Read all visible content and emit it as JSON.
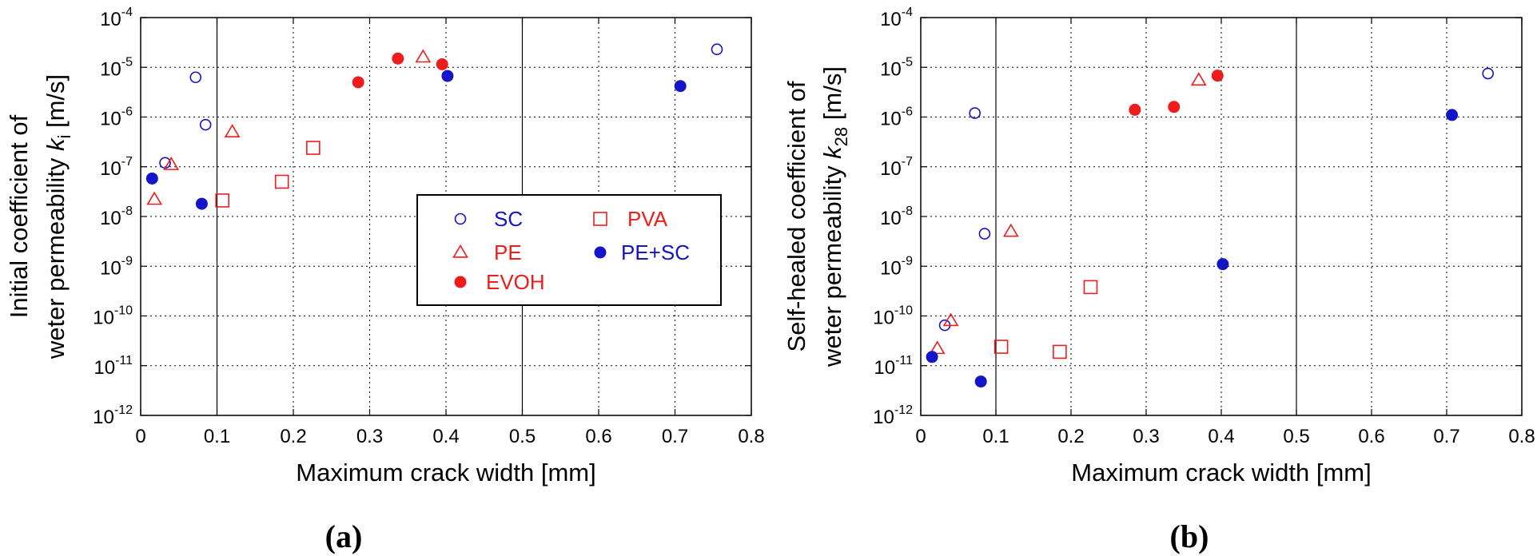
{
  "colors": {
    "blue": "#1414c8",
    "red": "#ee1c1c",
    "black": "#000000"
  },
  "legend": {
    "entries": [
      {
        "key": "SC",
        "label": "SC",
        "marker": "circle-open",
        "color": "blue"
      },
      {
        "key": "PE",
        "label": "PE",
        "marker": "triangle-open",
        "color": "red"
      },
      {
        "key": "EVOH",
        "label": "EVOH",
        "marker": "circle-filled",
        "color": "red"
      },
      {
        "key": "PVA",
        "label": "PVA",
        "marker": "square-open",
        "color": "red"
      },
      {
        "key": "PE+SC",
        "label": "PE+SC",
        "marker": "circle-filled",
        "color": "blue"
      }
    ]
  },
  "chart_data": [
    {
      "type": "scatter",
      "panel_label": "(a)",
      "xlabel": "Maximum crack width [mm]",
      "ylabel_line1": "Initial coefficient of",
      "ylabel_line2_prefix": "weter permeability ",
      "ylabel_symbol": "k",
      "ylabel_subscript": "i",
      "ylabel_unit": " [m/s]",
      "xlim": [
        0,
        0.8
      ],
      "x_ticks": [
        "0",
        "0.1",
        "0.2",
        "0.3",
        "0.4",
        "0.5",
        "0.6",
        "0.7",
        "0.8"
      ],
      "y_scale": "log",
      "ylim_exp": [
        -12,
        -4
      ],
      "y_tick_base": "10",
      "y_tick_exps": [
        "-12",
        "-11",
        "-10",
        "-9",
        "-8",
        "-7",
        "-6",
        "-5",
        "-4"
      ],
      "grid": true,
      "legend_position": "inside-right",
      "series": [
        {
          "key": "SC",
          "points": [
            [
              0.072,
              6.3e-06
            ],
            [
              0.085,
              7e-07
            ],
            [
              0.032,
              1.2e-07
            ],
            [
              0.755,
              2.3e-05
            ]
          ]
        },
        {
          "key": "PE",
          "points": [
            [
              0.018,
              2.2e-08
            ],
            [
              0.04,
              1.1e-07
            ],
            [
              0.12,
              5e-07
            ],
            [
              0.37,
              1.6e-05
            ]
          ]
        },
        {
          "key": "EVOH",
          "points": [
            [
              0.285,
              5e-06
            ],
            [
              0.337,
              1.5e-05
            ],
            [
              0.395,
              1.15e-05
            ]
          ]
        },
        {
          "key": "PVA",
          "points": [
            [
              0.107,
              2.1e-08
            ],
            [
              0.185,
              5e-08
            ],
            [
              0.226,
              2.4e-07
            ]
          ]
        },
        {
          "key": "PE+SC",
          "points": [
            [
              0.015,
              5.8e-08
            ],
            [
              0.08,
              1.8e-08
            ],
            [
              0.402,
              6.7e-06
            ],
            [
              0.707,
              4.2e-06
            ]
          ]
        }
      ]
    },
    {
      "type": "scatter",
      "panel_label": "(b)",
      "xlabel": "Maximum crack width [mm]",
      "ylabel_line1": "Self-healed coefficient of",
      "ylabel_line2_prefix": "weter permeability ",
      "ylabel_symbol": "k",
      "ylabel_subscript": "28",
      "ylabel_unit": " [m/s]",
      "xlim": [
        0,
        0.8
      ],
      "x_ticks": [
        "0",
        "0.1",
        "0.2",
        "0.3",
        "0.4",
        "0.5",
        "0.6",
        "0.7",
        "0.8"
      ],
      "y_scale": "log",
      "ylim_exp": [
        -12,
        -4
      ],
      "y_tick_base": "10",
      "y_tick_exps": [
        "-12",
        "-11",
        "-10",
        "-9",
        "-8",
        "-7",
        "-6",
        "-5",
        "-4"
      ],
      "grid": true,
      "series": [
        {
          "key": "SC",
          "points": [
            [
              0.072,
              1.2e-06
            ],
            [
              0.085,
              4.5e-09
            ],
            [
              0.032,
              6.5e-11
            ],
            [
              0.755,
              7.5e-06
            ]
          ]
        },
        {
          "key": "PE",
          "points": [
            [
              0.022,
              2.2e-11
            ],
            [
              0.04,
              8e-11
            ],
            [
              0.12,
              5e-09
            ],
            [
              0.37,
              5.5e-06
            ]
          ]
        },
        {
          "key": "EVOH",
          "points": [
            [
              0.285,
              1.4e-06
            ],
            [
              0.337,
              1.6e-06
            ],
            [
              0.395,
              6.8e-06
            ]
          ]
        },
        {
          "key": "PVA",
          "points": [
            [
              0.107,
              2.4e-11
            ],
            [
              0.185,
              1.9e-11
            ],
            [
              0.226,
              3.8e-10
            ]
          ]
        },
        {
          "key": "PE+SC",
          "points": [
            [
              0.015,
              1.5e-11
            ],
            [
              0.08,
              4.8e-12
            ],
            [
              0.402,
              1.1e-09
            ],
            [
              0.707,
              1.1e-06
            ]
          ]
        }
      ]
    }
  ]
}
